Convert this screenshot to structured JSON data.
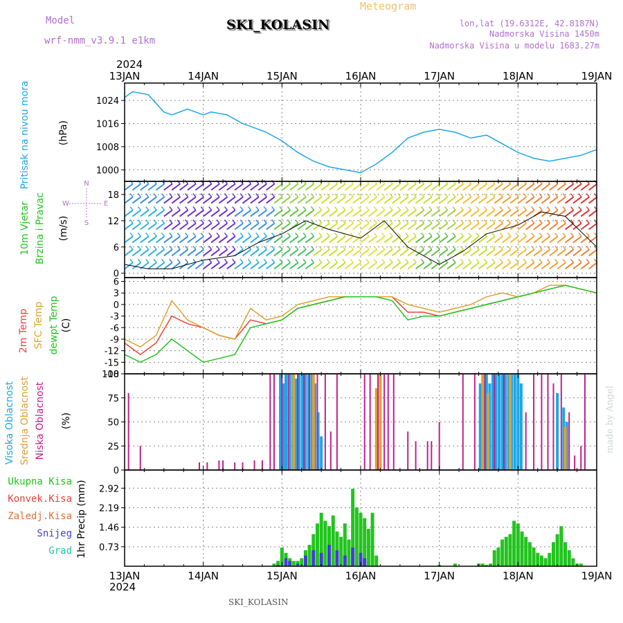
{
  "header": {
    "model_label": "Model",
    "model_name": "wrf-nmm_v3.9.1 e1km",
    "station": "SKI_KOLASIN",
    "app_title": "Meteogram",
    "lonlat": "lon,lat (19.6312E, 42.8187N)",
    "altitude": "Nadmorska Visina 1450m",
    "model_altitude": "Nadmorska Visina u modelu 1683.27m",
    "year_top": "2024",
    "year_bottom": "2024",
    "footer_station": "SKI_KOLASIN",
    "watermark": "made by Angel"
  },
  "time_axis": {
    "labels": [
      "13JAN",
      "14JAN",
      "15JAN",
      "16JAN",
      "17JAN",
      "18JAN",
      "19JAN"
    ]
  },
  "colors": {
    "pressure": "#1ea6e6",
    "temp2m": "#e8413a",
    "sfc": "#e0a030",
    "dewpt": "#22c41e",
    "high_cloud": "#1ea6e6",
    "mid_cloud": "#e0a030",
    "low_cloud": "#c0208a",
    "total_precip": "#22c41e",
    "snow": "#4040d0"
  },
  "chart_data": [
    {
      "type": "line",
      "panel": "pressure",
      "ylabel": [
        "Pritisak na nivou mora",
        "(hPa)"
      ],
      "yticks": [
        1000,
        1008,
        1016,
        1024
      ],
      "ylim": [
        996,
        1030
      ],
      "grid": true,
      "x": [
        0,
        0.1,
        0.3,
        0.5,
        0.6,
        0.8,
        1,
        1.1,
        1.3,
        1.5,
        1.6,
        1.8,
        2,
        2.2,
        2.4,
        2.6,
        2.8,
        3,
        3.2,
        3.4,
        3.6,
        3.8,
        4,
        4.2,
        4.4,
        4.6,
        4.8,
        5,
        5.2,
        5.4,
        5.6,
        5.8,
        6
      ],
      "values": [
        1025,
        1027,
        1026,
        1020,
        1019,
        1021,
        1019,
        1020,
        1019,
        1016,
        1015,
        1013,
        1010,
        1006,
        1003,
        1001,
        1000,
        999,
        1002,
        1006,
        1011,
        1013,
        1014,
        1013,
        1011,
        1012,
        1009,
        1006,
        1004,
        1003,
        1004,
        1005,
        1007
      ],
      "series": [
        {
          "name": "",
          "color": "#1ea6e6"
        }
      ]
    },
    {
      "type": "line",
      "panel": "wind",
      "ylabel": [
        "10m Vjetar",
        "Brzina i Pravac",
        "(m/s)"
      ],
      "compass": [
        "N",
        "W",
        "E",
        "S"
      ],
      "yticks": [
        0,
        6,
        12,
        18
      ],
      "ylim": [
        -1,
        21
      ],
      "grid": true,
      "x": [
        0,
        0.3,
        0.6,
        1,
        1.4,
        1.7,
        2,
        2.3,
        2.6,
        3,
        3.3,
        3.6,
        4,
        4.3,
        4.6,
        5,
        5.3,
        5.6,
        6
      ],
      "values": [
        2,
        1,
        1,
        3,
        4,
        7,
        9,
        12,
        10,
        8,
        12,
        6,
        2,
        5,
        9,
        11,
        14,
        13,
        6
      ],
      "series": [
        {
          "name": ""
        }
      ],
      "rows": [
        {
          "y": 19,
          "colors": [
            "#3a8ee0",
            "#6a30c8",
            "#6a30c8",
            "#6a30c8",
            "#90d040",
            "#c8e030",
            "#e0e040",
            "#c8e030",
            "#c8e030",
            "#f0c030",
            "#f0a030",
            "#f08030",
            "#e03030"
          ]
        },
        {
          "y": 16,
          "colors": [
            "#3a8ee0",
            "#6a30c8",
            "#6a30c8",
            "#6a30c8",
            "#90d040",
            "#c8e030",
            "#e0e040",
            "#c8e030",
            "#c8e030",
            "#f0c030",
            "#f0a030",
            "#f08030",
            "#e03030"
          ]
        },
        {
          "y": 13,
          "colors": [
            "#2ab0e0",
            "#6a30c8",
            "#6a30c8",
            "#3a8ee0",
            "#60c040",
            "#c8e030",
            "#e0e040",
            "#c8e030",
            "#a0d040",
            "#f0c030",
            "#f0a030",
            "#f08030",
            "#e03030"
          ]
        },
        {
          "y": 10,
          "colors": [
            "#2ab0e0",
            "#6a30c8",
            "#6a30c8",
            "#3a8ee0",
            "#60c040",
            "#c8e030",
            "#e0e040",
            "#c8e030",
            "#a0d040",
            "#f0c030",
            "#f0a030",
            "#f08030",
            "#e03030"
          ]
        },
        {
          "y": 7,
          "colors": [
            "#2ab0e0",
            "#3a8ee0",
            "#6a30c8",
            "#2ab0e0",
            "#40c060",
            "#c8e030",
            "#e0e040",
            "#c8e030",
            "#60c040",
            "#c8e030",
            "#f0c030",
            "#f0a030",
            "#f08030"
          ]
        },
        {
          "y": 4,
          "colors": [
            "#2ab0e0",
            "#3a8ee0",
            "#6a30c8",
            "#2ab0e0",
            "#40c060",
            "#c8e030",
            "#e0e040",
            "#c8e030",
            "#60c040",
            "#c8e030",
            "#f0c030",
            "#f0a030",
            "#f08030"
          ]
        },
        {
          "y": 1,
          "colors": [
            "#2ab0e0",
            "#3a8ee0",
            "#6a30c8",
            "#2ab0e0",
            "#40c060",
            "#c8e030",
            "#e0e040",
            "#c8e030",
            "#60c040",
            "#c8e030",
            "#f0c030",
            "#f0a030",
            "#f08030"
          ]
        }
      ]
    },
    {
      "type": "line",
      "panel": "temperature",
      "ylabel": [
        "2m Temp",
        "SFC Temp",
        "dewpt Temp",
        "(C)"
      ],
      "yticks": [
        -18,
        -15,
        -12,
        -9,
        -6,
        -3,
        0,
        3,
        6
      ],
      "ylim": [
        -18,
        7
      ],
      "grid": true,
      "x": [
        0,
        0.2,
        0.4,
        0.6,
        0.8,
        1,
        1.2,
        1.4,
        1.6,
        1.8,
        2,
        2.2,
        2.4,
        2.6,
        2.8,
        3,
        3.2,
        3.4,
        3.6,
        3.8,
        4,
        4.2,
        4.4,
        4.6,
        4.8,
        5,
        5.2,
        5.4,
        5.6,
        5.8,
        6
      ],
      "series": [
        {
          "name": "2m Temp",
          "color": "#e8413a",
          "values": [
            -10,
            -13,
            -10,
            -3,
            -5,
            -6,
            -8,
            -9,
            -4,
            -5,
            -4,
            -1,
            0,
            1,
            2,
            2,
            2,
            2,
            -2,
            -2,
            -3,
            -2,
            -1,
            0,
            1,
            2,
            3,
            4,
            5,
            4,
            3
          ]
        },
        {
          "name": "SFC Temp",
          "color": "#e0a030",
          "values": [
            -9,
            -11,
            -8,
            1,
            -4,
            -6,
            -8,
            -9,
            -1,
            -4,
            -3,
            0,
            1,
            2,
            2,
            2,
            2,
            2,
            0,
            -1,
            -2,
            -1,
            0,
            2,
            3,
            2,
            3,
            5,
            5,
            4,
            3
          ]
        },
        {
          "name": "dewpt Temp",
          "color": "#22c41e",
          "values": [
            -13,
            -15,
            -13,
            -9,
            -12,
            -15,
            -14,
            -13,
            -6,
            -5,
            -4,
            -1,
            0,
            1,
            2,
            2,
            2,
            1,
            -4,
            -3,
            -3,
            -2,
            -1,
            0,
            1,
            2,
            3,
            4,
            5,
            4,
            3
          ]
        }
      ]
    },
    {
      "type": "bar",
      "panel": "clouds",
      "ylabel": [
        "Visoka Oblacnost",
        "Srednja Oblacnost",
        "Niska Oblacnost",
        "(%)"
      ],
      "yticks": [
        0,
        25,
        50,
        75,
        100
      ],
      "ylim": [
        0,
        100
      ],
      "grid": true,
      "series": [
        {
          "name": "Visoka Oblacnost",
          "color": "#1ea6e6",
          "x": [
            1.98,
            2.02,
            2.05,
            2.1,
            2.14,
            2.18,
            2.22,
            2.26,
            2.3,
            2.34,
            2.38,
            2.42,
            2.46,
            2.5,
            4.52,
            4.56,
            4.6,
            4.64,
            4.68,
            4.72,
            4.76,
            4.8,
            4.84,
            4.88,
            4.92,
            4.96,
            5.0,
            5.04,
            5.5,
            5.58,
            5.62
          ],
          "values": [
            100,
            90,
            100,
            100,
            100,
            95,
            100,
            100,
            100,
            100,
            100,
            90,
            60,
            35,
            90,
            100,
            100,
            90,
            100,
            100,
            100,
            100,
            100,
            100,
            100,
            100,
            100,
            90,
            80,
            65,
            50
          ]
        },
        {
          "name": "Srednja Oblacnost",
          "color": "#e0a030",
          "x": [
            2.15,
            2.4,
            3.2,
            3.25,
            4.55,
            4.62,
            4.9,
            5.6
          ],
          "values": [
            100,
            100,
            85,
            100,
            100,
            80,
            100,
            45
          ]
        },
        {
          "name": "Niska Oblacnost",
          "color": "#c0208a",
          "x": [
            0.05,
            0.2,
            0.95,
            1.05,
            1.2,
            1.25,
            1.4,
            1.5,
            1.65,
            1.75,
            1.85,
            1.9,
            2.0,
            2.08,
            2.2,
            2.28,
            2.35,
            2.45,
            2.55,
            2.62,
            2.7,
            3.05,
            3.12,
            3.22,
            3.3,
            3.35,
            3.42,
            3.6,
            3.7,
            3.85,
            3.9,
            4.0,
            4.3,
            4.45,
            4.58,
            4.7,
            4.82,
            5.1,
            5.2,
            5.3,
            5.38,
            5.45,
            5.55,
            5.65,
            5.72,
            5.8,
            5.85
          ],
          "values": [
            80,
            25,
            8,
            8,
            10,
            10,
            8,
            8,
            10,
            10,
            100,
            100,
            100,
            100,
            100,
            100,
            100,
            100,
            100,
            40,
            100,
            100,
            100,
            100,
            100,
            100,
            100,
            40,
            30,
            30,
            30,
            50,
            100,
            100,
            100,
            100,
            100,
            60,
            100,
            100,
            100,
            90,
            100,
            60,
            15,
            25,
            100
          ]
        }
      ]
    },
    {
      "type": "bar",
      "panel": "precip",
      "ylabel": [
        "1hr Precip (mm)"
      ],
      "legend": [
        "Ukupna Kisa",
        "Konvek.Kisa",
        "Zaledj.Kisa",
        "Snijeg",
        "Grad"
      ],
      "legend_colors": [
        "#22c41e",
        "#e8413a",
        "#e07030",
        "#4040d0",
        "#20c0b0"
      ],
      "yticks": [
        0.73,
        1.46,
        2.19,
        2.92
      ],
      "ylim": [
        0,
        3.6
      ],
      "grid": true,
      "series": [
        {
          "name": "Ukupna Kisa",
          "color": "#22c41e",
          "x": [
            1.9,
            1.95,
            2.0,
            2.05,
            2.1,
            2.15,
            2.2,
            2.25,
            2.3,
            2.35,
            2.4,
            2.45,
            2.5,
            2.55,
            2.6,
            2.65,
            2.7,
            2.75,
            2.8,
            2.85,
            2.9,
            2.95,
            3.0,
            3.05,
            3.1,
            3.15,
            3.2,
            4.0,
            4.2,
            4.5,
            4.55,
            4.6,
            4.65,
            4.7,
            4.75,
            4.8,
            4.85,
            4.9,
            4.95,
            5.0,
            5.05,
            5.1,
            5.15,
            5.2,
            5.25,
            5.3,
            5.35,
            5.4,
            5.45,
            5.5,
            5.55,
            5.6,
            5.65,
            5.7,
            5.75,
            5.8
          ],
          "values": [
            0.1,
            0.2,
            0.7,
            0.5,
            0.3,
            0.2,
            0.2,
            0.3,
            0.6,
            0.8,
            1.2,
            1.6,
            2.0,
            1.7,
            1.5,
            1.9,
            1.3,
            1.1,
            1.6,
            1.0,
            2.9,
            2.2,
            2.0,
            1.8,
            1.4,
            2.0,
            0.4,
            0.05,
            0.1,
            0.1,
            0.1,
            0.05,
            0.1,
            0.6,
            0.7,
            1.0,
            1.1,
            1.2,
            1.7,
            1.6,
            1.3,
            1.1,
            0.9,
            0.7,
            0.5,
            0.4,
            0.3,
            0.5,
            0.9,
            1.2,
            1.5,
            0.9,
            0.6,
            0.3,
            0.1,
            0.1
          ]
        },
        {
          "name": "Snijeg",
          "color": "#4040d0",
          "x": [
            1.95,
            2.05,
            2.1,
            2.2,
            2.3,
            2.4,
            2.5,
            2.6,
            2.7,
            2.8,
            2.9,
            3.0,
            3.05
          ],
          "values": [
            0.05,
            0.3,
            0.2,
            0.1,
            0.4,
            0.6,
            0.5,
            0.8,
            0.6,
            0.4,
            0.7,
            0.5,
            0.3
          ]
        }
      ]
    }
  ]
}
